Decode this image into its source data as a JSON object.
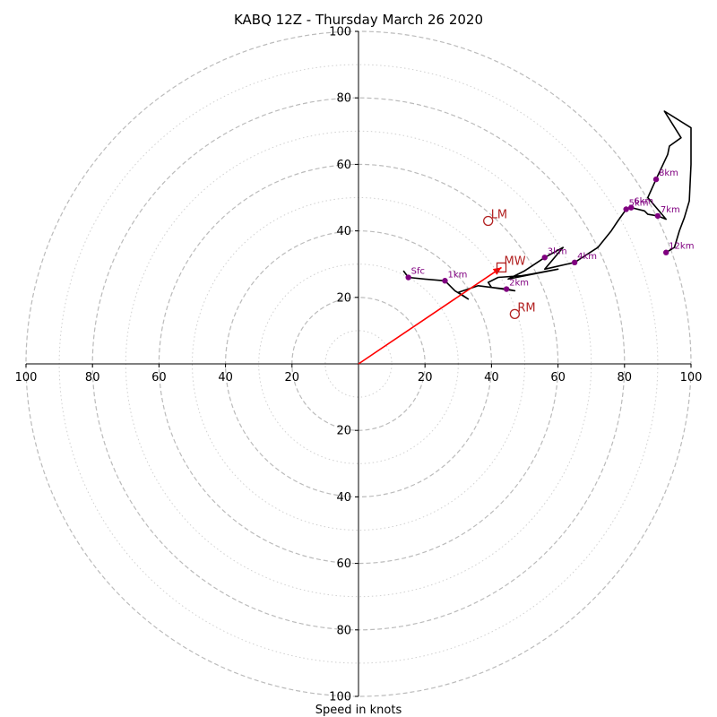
{
  "chart_data": {
    "type": "hodograph",
    "title": "KABQ 12Z - Thursday March 26 2020",
    "xlabel": "Speed in knots",
    "range": [
      -100,
      100
    ],
    "ring_major": [
      20,
      40,
      60,
      80,
      100
    ],
    "ring_minor": [
      10,
      30,
      50,
      70,
      90
    ],
    "ticks": {
      "x": [
        "100",
        "80",
        "60",
        "40",
        "20",
        "20",
        "40",
        "60",
        "80",
        "100"
      ],
      "y": [
        "100",
        "80",
        "60",
        "40",
        "20",
        "20",
        "40",
        "60",
        "80",
        "100"
      ]
    },
    "colors": {
      "trace": "#000000",
      "height_points": "#800080",
      "storm_motion": "#b22222",
      "mean_wind_vector": "#ff0000",
      "ring": "#bbbbbb"
    },
    "trace": [
      {
        "u": 13.5,
        "v": 28.0
      },
      {
        "u": 15.0,
        "v": 26.0
      },
      {
        "u": 20.0,
        "v": 25.5
      },
      {
        "u": 26.0,
        "v": 25.0
      },
      {
        "u": 29.0,
        "v": 22.0
      },
      {
        "u": 33.0,
        "v": 19.5
      },
      {
        "u": 30.0,
        "v": 21.5
      },
      {
        "u": 36.0,
        "v": 23.5
      },
      {
        "u": 40.0,
        "v": 23.0
      },
      {
        "u": 44.5,
        "v": 22.5
      },
      {
        "u": 47.0,
        "v": 22.0
      },
      {
        "u": 40.0,
        "v": 23.0
      },
      {
        "u": 39.0,
        "v": 24.5
      },
      {
        "u": 42.0,
        "v": 26.0
      },
      {
        "u": 49.0,
        "v": 26.5
      },
      {
        "u": 52.0,
        "v": 27.0
      },
      {
        "u": 60.0,
        "v": 28.5
      },
      {
        "u": 45.0,
        "v": 25.5
      },
      {
        "u": 50.0,
        "v": 28.0
      },
      {
        "u": 56.0,
        "v": 32.0
      },
      {
        "u": 61.5,
        "v": 35.0
      },
      {
        "u": 56.0,
        "v": 28.5
      },
      {
        "u": 65.0,
        "v": 30.5
      },
      {
        "u": 72.0,
        "v": 35.0
      },
      {
        "u": 76.0,
        "v": 40.0
      },
      {
        "u": 78.0,
        "v": 43.0
      },
      {
        "u": 80.5,
        "v": 46.5
      },
      {
        "u": 82.0,
        "v": 47.0
      },
      {
        "u": 86.0,
        "v": 46.0
      },
      {
        "u": 87.0,
        "v": 45.0
      },
      {
        "u": 90.0,
        "v": 44.5
      },
      {
        "u": 92.5,
        "v": 43.5
      },
      {
        "u": 87.0,
        "v": 50.0
      },
      {
        "u": 89.5,
        "v": 55.5
      },
      {
        "u": 93.0,
        "v": 63.0
      },
      {
        "u": 93.5,
        "v": 65.5
      },
      {
        "u": 97.0,
        "v": 68.0
      },
      {
        "u": 92.0,
        "v": 76.0
      },
      {
        "u": 100.0,
        "v": 71.0
      },
      {
        "u": 100.0,
        "v": 60.0
      },
      {
        "u": 99.5,
        "v": 49.0
      },
      {
        "u": 98.0,
        "v": 44.0
      },
      {
        "u": 96.5,
        "v": 40.0
      },
      {
        "u": 95.0,
        "v": 35.0
      },
      {
        "u": 92.5,
        "v": 33.5
      }
    ],
    "height_points": [
      {
        "label": "Sfc",
        "u": 15.0,
        "v": 26.0
      },
      {
        "label": "1km",
        "u": 26.0,
        "v": 25.0
      },
      {
        "label": "2km",
        "u": 44.5,
        "v": 22.5
      },
      {
        "label": "3km",
        "u": 56.0,
        "v": 32.0
      },
      {
        "label": "4km",
        "u": 65.0,
        "v": 30.5
      },
      {
        "label": "5km",
        "u": 80.5,
        "v": 46.5
      },
      {
        "label": "6km",
        "u": 82.0,
        "v": 47.0
      },
      {
        "label": "7km",
        "u": 90.0,
        "v": 44.5
      },
      {
        "label": "8km",
        "u": 89.5,
        "v": 55.5
      },
      {
        "label": "12km",
        "u": 92.5,
        "v": 33.5
      }
    ],
    "storm_motion": [
      {
        "label": "LM",
        "u": 39.0,
        "v": 43.0,
        "marker": "circle"
      },
      {
        "label": "MW",
        "u": 43.0,
        "v": 29.0,
        "marker": "square"
      },
      {
        "label": "RM",
        "u": 47.0,
        "v": 15.0,
        "marker": "circle"
      }
    ],
    "mean_wind_vector": {
      "u": 43.0,
      "v": 29.0
    }
  }
}
